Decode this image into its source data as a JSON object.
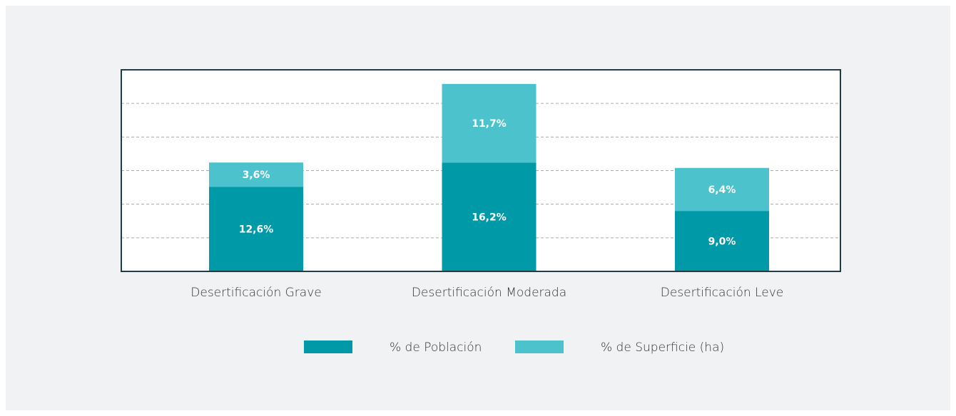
{
  "chart_data": {
    "type": "stacked_bar",
    "categories": [
      "Desertificación Grave",
      "Desertificación Moderada",
      "Desertificación Leve"
    ],
    "series": [
      {
        "name": "% de Población",
        "color": "#0099a8",
        "values": [
          12.6,
          16.2,
          9.0
        ],
        "value_labels": [
          "12,6%",
          "16,2%",
          "9,0%"
        ]
      },
      {
        "name": "% de Superficie (ha)",
        "color": "#4cc3cc",
        "values": [
          3.6,
          11.7,
          6.4
        ],
        "value_labels": [
          "3,6%",
          "11,7%",
          "6,4%"
        ]
      }
    ],
    "ylim": [
      0,
      30
    ],
    "yticks": [
      5,
      10,
      15,
      20,
      25
    ],
    "grid": true,
    "legend": "bottom"
  }
}
